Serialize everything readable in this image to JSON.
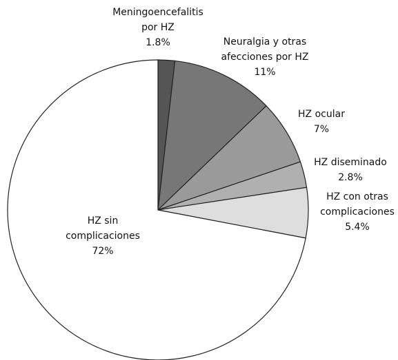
{
  "chart_data": {
    "type": "pie",
    "categories": [
      "Meningoencefalitis\npor HZ",
      "Neuralgia y otras\nafecciones por HZ",
      "HZ ocular",
      "HZ diseminado",
      "HZ con otras\ncomplicaciones",
      "HZ sin\ncomplicaciones"
    ],
    "values": [
      1.8,
      11,
      7,
      2.8,
      5.4,
      72
    ],
    "value_labels": [
      "1.8%",
      "11%",
      "7%",
      "2.8%",
      "5.4%",
      "72%"
    ],
    "colors": [
      "#555555",
      "#777777",
      "#9a9a9a",
      "#b0b0b0",
      "#dedede",
      "#ffffff"
    ]
  }
}
